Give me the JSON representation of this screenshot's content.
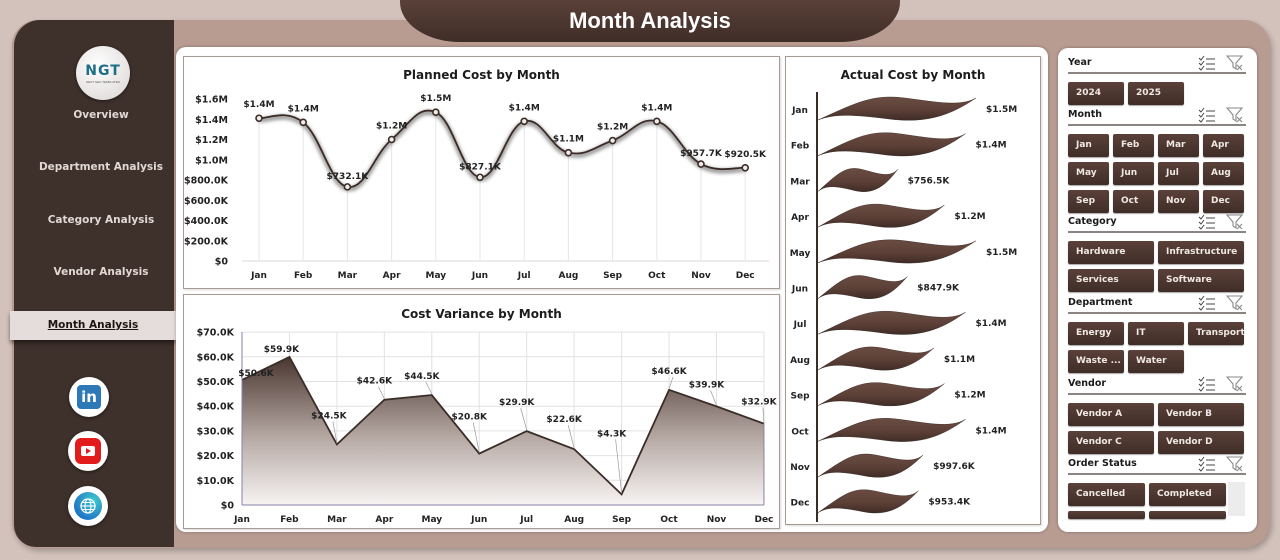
{
  "header": {
    "title": "Month Analysis"
  },
  "sidebar": {
    "logo_text": "NGT",
    "logo_subtext": "NEXT GEN TEMPLATES",
    "items": [
      {
        "label": "Overview",
        "active": false
      },
      {
        "label": "Department Analysis",
        "active": false
      },
      {
        "label": "Category Analysis",
        "active": false
      },
      {
        "label": "Vendor Analysis",
        "active": false
      },
      {
        "label": "Month Analysis",
        "active": true
      }
    ],
    "social": [
      "linkedin-icon",
      "youtube-icon",
      "globe-icon"
    ],
    "linkedin_glyph": "in"
  },
  "colors": {
    "accent": "#3e302b",
    "background": "#b89c92",
    "page": "#d3c2bb",
    "button": "#4a352e",
    "active_nav": "#e5dddb"
  },
  "chart_data": [
    {
      "id": "planned",
      "type": "line",
      "title": "Planned Cost by Month",
      "categories": [
        "Jan",
        "Feb",
        "Mar",
        "Apr",
        "May",
        "Jun",
        "Jul",
        "Aug",
        "Sep",
        "Oct",
        "Nov",
        "Dec"
      ],
      "values": [
        1410000,
        1370000,
        732100,
        1200000,
        1470000,
        827100,
        1380000,
        1070000,
        1190000,
        1380000,
        957700,
        920500
      ],
      "labels": [
        "$1.4M",
        "$1.4M",
        "$732.1K",
        "$1.2M",
        "$1.5M",
        "$827.1K",
        "$1.4M",
        "$1.1M",
        "$1.2M",
        "$1.4M",
        "$957.7K",
        "$920.5K"
      ],
      "yticks": [
        "$0",
        "$200.0K",
        "$400.0K",
        "$600.0K",
        "$800.0K",
        "$1.0M",
        "$1.2M",
        "$1.4M",
        "$1.6M"
      ],
      "ylim": [
        0,
        1600000
      ],
      "smooth": true,
      "grid": "vertical"
    },
    {
      "id": "variance",
      "type": "area",
      "title": "Cost Variance by Month",
      "categories": [
        "Jan",
        "Feb",
        "Mar",
        "Apr",
        "May",
        "Jun",
        "Jul",
        "Aug",
        "Sep",
        "Oct",
        "Nov",
        "Dec"
      ],
      "values": [
        50600,
        59900,
        24500,
        42600,
        44500,
        20800,
        29900,
        22600,
        4300,
        46600,
        39900,
        32900
      ],
      "labels": [
        "$50.6K",
        "$59.9K",
        "$24.5K",
        "$42.6K",
        "$44.5K",
        "$20.8K",
        "$29.9K",
        "$22.6K",
        "$4.3K",
        "$46.6K",
        "$39.9K",
        "$32.9K"
      ],
      "yticks": [
        "$0",
        "$10.0K",
        "$20.0K",
        "$30.0K",
        "$40.0K",
        "$50.0K",
        "$60.0K",
        "$70.0K"
      ],
      "ylim": [
        0,
        70000
      ],
      "grid": "both"
    },
    {
      "id": "actual",
      "type": "bar",
      "orientation": "horizontal",
      "title": "Actual Cost by Month",
      "categories": [
        "Jan",
        "Feb",
        "Mar",
        "Apr",
        "May",
        "Jun",
        "Jul",
        "Aug",
        "Sep",
        "Oct",
        "Nov",
        "Dec"
      ],
      "values": [
        1500000,
        1400000,
        756500,
        1200000,
        1500000,
        847900,
        1400000,
        1100000,
        1200000,
        1400000,
        997600,
        953400
      ],
      "labels": [
        "$1.5M",
        "$1.4M",
        "$756.5K",
        "$1.2M",
        "$1.5M",
        "$847.9K",
        "$1.4M",
        "$1.1M",
        "$1.2M",
        "$1.4M",
        "$997.6K",
        "$953.4K"
      ]
    }
  ],
  "filters": {
    "year": {
      "label": "Year",
      "options": [
        "2024",
        "2025"
      ]
    },
    "month": {
      "label": "Month",
      "options": [
        "Jan",
        "Feb",
        "Mar",
        "Apr",
        "May",
        "Jun",
        "Jul",
        "Aug",
        "Sep",
        "Oct",
        "Nov",
        "Dec"
      ]
    },
    "category": {
      "label": "Category",
      "options": [
        "Hardware",
        "Infrastructure",
        "Services",
        "Software"
      ]
    },
    "department": {
      "label": "Department",
      "options": [
        "Energy",
        "IT",
        "Transport",
        "Waste ...",
        "Water"
      ]
    },
    "vendor": {
      "label": "Vendor",
      "options": [
        "Vendor A",
        "Vendor B",
        "Vendor C",
        "Vendor D"
      ]
    },
    "order_status": {
      "label": "Order Status",
      "options": [
        "Cancelled",
        "Completed"
      ]
    },
    "multiselect_icon": "☰",
    "clear_filter_icon": "filter-clear"
  }
}
